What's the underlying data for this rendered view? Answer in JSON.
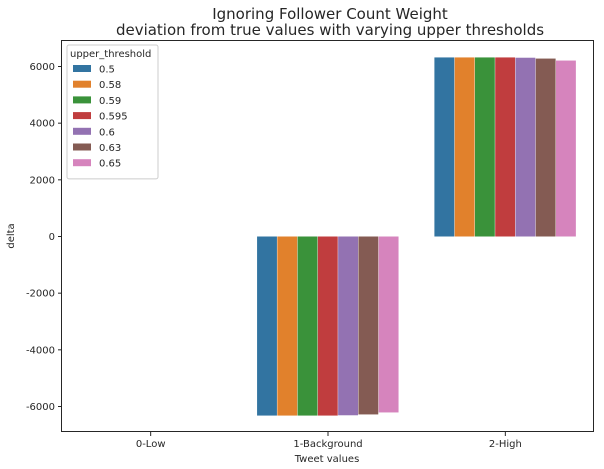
{
  "chart_data": {
    "type": "bar",
    "title": [
      "Ignoring Follower Count Weight",
      "deviation from true values with varying upper thresholds"
    ],
    "xlabel": "Tweet values",
    "ylabel": "delta",
    "categories": [
      "0-Low",
      "1-Background",
      "2-High"
    ],
    "ylim": [
      -6900,
      6900
    ],
    "yticks": [
      -6000,
      -4000,
      -2000,
      0,
      2000,
      4000,
      6000
    ],
    "grid": false,
    "legend": {
      "title": "upper_threshold",
      "placement": "top-left"
    },
    "series": [
      {
        "name": "0.5",
        "color": "#3274a1",
        "values": [
          0,
          -6320,
          6320
        ]
      },
      {
        "name": "0.58",
        "color": "#e1812c",
        "values": [
          0,
          -6320,
          6320
        ]
      },
      {
        "name": "0.59",
        "color": "#3a923a",
        "values": [
          0,
          -6320,
          6320
        ]
      },
      {
        "name": "0.595",
        "color": "#c03d3e",
        "values": [
          0,
          -6320,
          6320
        ]
      },
      {
        "name": "0.6",
        "color": "#9372b2",
        "values": [
          0,
          -6310,
          6310
        ]
      },
      {
        "name": "0.63",
        "color": "#845b53",
        "values": [
          0,
          -6280,
          6280
        ]
      },
      {
        "name": "0.65",
        "color": "#d684bd",
        "values": [
          0,
          -6210,
          6210
        ]
      }
    ]
  }
}
